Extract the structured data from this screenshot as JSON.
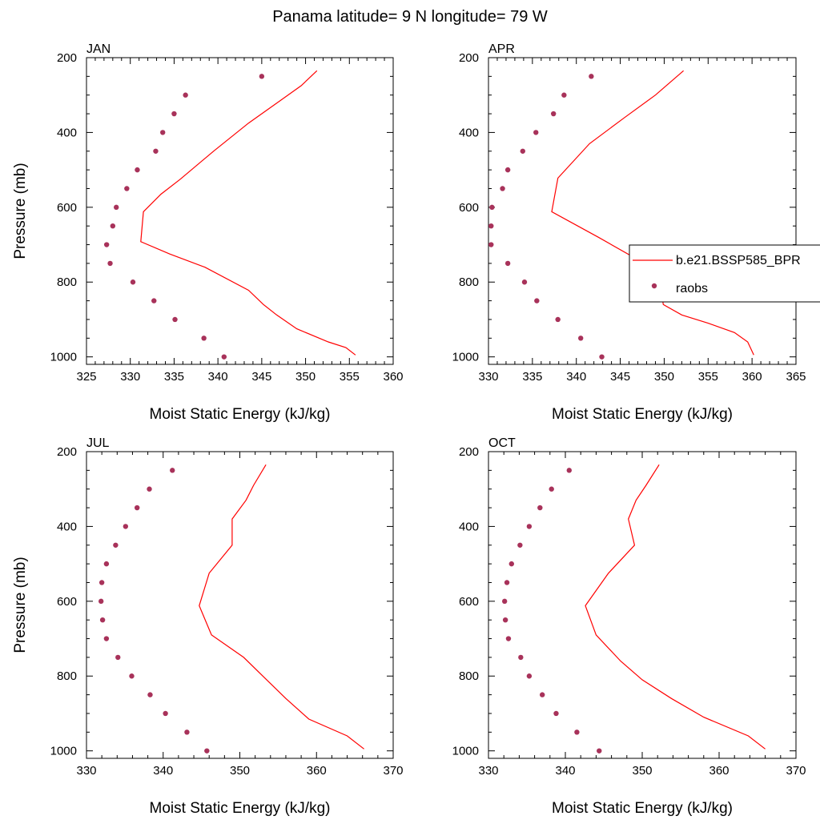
{
  "figure_title": "Panama  latitude= 9 N longitude= 79 W",
  "colors": {
    "model_line": "#ff0000",
    "raobs_marker": "#a8325a",
    "axis": "#000000"
  },
  "legend": {
    "placement": "right-middle (inside APR panel, clipped at figure edge)",
    "entries": [
      {
        "label": "b.e21.BSSP585_BPR",
        "symbol": "line"
      },
      {
        "label": "raobs",
        "symbol": "dot"
      }
    ]
  },
  "chart_data": [
    {
      "type": "line",
      "panel": "JAN",
      "title": "JAN",
      "xlabel": "Moist Static Energy (kJ/kg)",
      "ylabel": "Pressure (mb)",
      "xlim": [
        325,
        360
      ],
      "ylim": [
        1000,
        200
      ],
      "y_reversed": true,
      "xticks": [
        325,
        330,
        335,
        340,
        345,
        350,
        355,
        360
      ],
      "yticks": [
        200,
        400,
        600,
        800,
        1000
      ],
      "series": [
        {
          "name": "b.e21.BSSP585_BPR",
          "style": "line",
          "x": [
            351.3,
            349.5,
            346.5,
            343.5,
            339.5,
            335.7,
            333.5,
            331.5,
            331.2,
            334.5,
            338.5,
            343.5,
            345.2,
            346.7,
            349.0,
            352.6,
            354.6,
            355.7
          ],
          "y": [
            235,
            275,
            325,
            375,
            450,
            525,
            565,
            612,
            692,
            725,
            760,
            822,
            860,
            888,
            925,
            960,
            975,
            995
          ]
        },
        {
          "name": "raobs",
          "style": "markers",
          "x": [
            345.0,
            336.3,
            335.0,
            333.7,
            332.9,
            330.8,
            329.6,
            328.4,
            328.0,
            327.3,
            327.7,
            330.3,
            332.7,
            335.1,
            338.4,
            340.7
          ],
          "y": [
            250,
            300,
            350,
            400,
            450,
            500,
            550,
            600,
            650,
            700,
            750,
            800,
            850,
            900,
            950,
            1000
          ]
        }
      ]
    },
    {
      "type": "line",
      "panel": "APR",
      "title": "APR",
      "xlabel": "Moist Static Energy (kJ/kg)",
      "ylabel": "",
      "xlim": [
        330,
        365
      ],
      "ylim": [
        1000,
        200
      ],
      "y_reversed": true,
      "xticks": [
        330,
        335,
        340,
        345,
        350,
        355,
        360,
        365
      ],
      "yticks": [
        200,
        400,
        600,
        800,
        1000
      ],
      "series": [
        {
          "name": "b.e21.BSSP585_BPR",
          "style": "line",
          "x": [
            352.2,
            349.0,
            345.5,
            341.5,
            337.9,
            337.2,
            342.5,
            348.5,
            349.5,
            349.9,
            352.0,
            355.0,
            358.0,
            359.5,
            360.2
          ],
          "y": [
            235,
            300,
            360,
            430,
            522,
            612,
            680,
            760,
            800,
            860,
            888,
            910,
            935,
            960,
            995
          ]
        },
        {
          "name": "raobs",
          "style": "markers",
          "x": [
            341.7,
            338.6,
            337.4,
            335.4,
            333.9,
            332.2,
            331.6,
            330.4,
            330.3,
            330.3,
            332.2,
            334.1,
            335.5,
            337.9,
            340.5,
            342.9
          ],
          "y": [
            250,
            300,
            350,
            400,
            450,
            500,
            550,
            600,
            650,
            700,
            750,
            800,
            850,
            900,
            950,
            1000
          ]
        }
      ]
    },
    {
      "type": "line",
      "panel": "JUL",
      "title": "JUL",
      "xlabel": "Moist Static Energy (kJ/kg)",
      "ylabel": "Pressure (mb)",
      "xlim": [
        330,
        370
      ],
      "ylim": [
        1000,
        200
      ],
      "y_reversed": true,
      "xticks": [
        330,
        340,
        350,
        360,
        370
      ],
      "yticks": [
        200,
        400,
        600,
        800,
        1000
      ],
      "series": [
        {
          "name": "b.e21.BSSP585_BPR",
          "style": "line",
          "x": [
            353.4,
            351.8,
            350.8,
            349.0,
            349.0,
            346.0,
            344.7,
            346.3,
            350.5,
            353.5,
            356.0,
            359.0,
            364.0,
            366.2
          ],
          "y": [
            235,
            290,
            330,
            380,
            450,
            525,
            612,
            690,
            750,
            810,
            860,
            915,
            960,
            995
          ]
        },
        {
          "name": "raobs",
          "style": "markers",
          "x": [
            341.2,
            338.2,
            336.6,
            335.1,
            333.8,
            332.6,
            332.0,
            331.9,
            332.1,
            332.6,
            334.1,
            335.9,
            338.3,
            340.3,
            343.1,
            345.7
          ],
          "y": [
            250,
            300,
            350,
            400,
            450,
            500,
            550,
            600,
            650,
            700,
            750,
            800,
            850,
            900,
            950,
            1000
          ]
        }
      ]
    },
    {
      "type": "line",
      "panel": "OCT",
      "title": "OCT",
      "xlabel": "Moist Static Energy (kJ/kg)",
      "ylabel": "",
      "xlim": [
        330,
        370
      ],
      "ylim": [
        1000,
        200
      ],
      "y_reversed": true,
      "xticks": [
        330,
        340,
        350,
        360,
        370
      ],
      "yticks": [
        200,
        400,
        600,
        800,
        1000
      ],
      "series": [
        {
          "name": "b.e21.BSSP585_BPR",
          "style": "line",
          "x": [
            352.2,
            350.5,
            349.2,
            348.2,
            349.0,
            345.6,
            342.6,
            344.0,
            347.2,
            350.0,
            353.8,
            358.0,
            363.8,
            366.0
          ],
          "y": [
            235,
            290,
            330,
            380,
            450,
            525,
            612,
            690,
            760,
            810,
            860,
            910,
            960,
            995
          ]
        },
        {
          "name": "raobs",
          "style": "markers",
          "x": [
            340.5,
            338.2,
            336.7,
            335.3,
            334.1,
            333.0,
            332.4,
            332.1,
            332.2,
            332.6,
            334.2,
            335.3,
            337.0,
            338.8,
            341.5,
            344.4
          ],
          "y": [
            250,
            300,
            350,
            400,
            450,
            500,
            550,
            600,
            650,
            700,
            750,
            800,
            850,
            900,
            950,
            1000
          ]
        }
      ]
    }
  ]
}
